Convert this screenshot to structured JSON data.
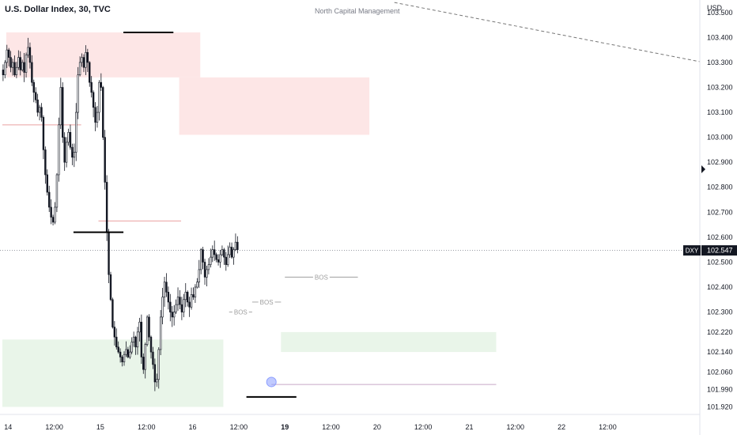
{
  "header": {
    "symbol_title": "U.S. Dollar Index, 30, TVC",
    "watermark": "North Capital Management",
    "currency_unit": "USD"
  },
  "colors": {
    "supply_zone": "#fde6e6",
    "demand_zone": "#e9f5e9",
    "candle": "#131722",
    "level_line_red": "#e9a0a0",
    "level_line_purple": "#c8a6c8",
    "marker": "#8c9eff",
    "bos": "#9e9e9e",
    "trendline": "#777777",
    "price_line": "#787b86",
    "price_tag": "#131722"
  },
  "chart_data": {
    "type": "candlestick",
    "symbol": "DXY",
    "interval": "30",
    "source": "TVC",
    "last_price": "102.547",
    "ylim": [
      101.89,
      103.55
    ],
    "y_ticks": [
      "103.500",
      "103.400",
      "103.300",
      "103.200",
      "103.100",
      "103.000",
      "102.900",
      "102.800",
      "102.700",
      "102.600",
      "102.500",
      "102.400",
      "102.300",
      "102.220",
      "102.140",
      "102.060",
      "101.990",
      "101.920"
    ],
    "x_ticks": [
      {
        "label": "14",
        "bar": 3
      },
      {
        "label": "12:00",
        "bar": 27
      },
      {
        "label": "15",
        "bar": 51
      },
      {
        "label": "12:00",
        "bar": 75
      },
      {
        "label": "16",
        "bar": 99
      },
      {
        "label": "12:00",
        "bar": 123
      },
      {
        "label": "19",
        "bar": 147,
        "bold": true
      },
      {
        "label": "12:00",
        "bar": 171
      },
      {
        "label": "20",
        "bar": 195
      },
      {
        "label": "12:00",
        "bar": 219
      },
      {
        "label": "21",
        "bar": 243
      },
      {
        "label": "12:00",
        "bar": 267
      },
      {
        "label": "22",
        "bar": 291
      },
      {
        "label": "12:00",
        "bar": 315
      }
    ],
    "close_path": [
      103.25,
      103.3,
      103.35,
      103.32,
      103.28,
      103.3,
      103.25,
      103.28,
      103.32,
      103.27,
      103.3,
      103.26,
      103.33,
      103.36,
      103.3,
      103.22,
      103.18,
      103.15,
      103.1,
      103.12,
      103.08,
      102.95,
      102.85,
      102.78,
      102.72,
      102.68,
      102.66,
      102.72,
      102.85,
      103.05,
      103.2,
      103.0,
      102.9,
      102.98,
      103.02,
      102.96,
      102.92,
      102.94,
      103.1,
      103.25,
      103.3,
      103.32,
      103.28,
      103.34,
      103.3,
      103.22,
      103.18,
      103.12,
      103.06,
      103.1,
      103.22,
      103.2,
      103.0,
      102.82,
      102.62,
      102.45,
      102.35,
      102.24,
      102.2,
      102.16,
      102.14,
      102.12,
      102.1,
      102.13,
      102.15,
      102.12,
      102.14,
      102.18,
      102.2,
      102.16,
      102.22,
      102.26,
      102.12,
      102.07,
      102.17,
      102.28,
      102.2,
      102.14,
      102.09,
      102.02,
      102.03,
      102.15,
      102.28,
      102.36,
      102.42,
      102.38,
      102.34,
      102.3,
      102.28,
      102.3,
      102.33,
      102.36,
      102.33,
      102.3,
      102.35,
      102.38,
      102.34,
      102.32,
      102.37,
      102.36,
      102.4,
      102.42,
      102.47,
      102.55,
      102.5,
      102.44,
      102.47,
      102.49,
      102.52,
      102.55,
      102.53,
      102.51,
      102.5,
      102.53,
      102.55,
      102.52,
      102.49,
      102.53,
      102.56,
      102.52,
      102.55,
      102.58,
      102.55
    ],
    "zones": [
      {
        "type": "supply",
        "bar_start": 2,
        "bar_end": 103,
        "top": 103.42,
        "bottom": 103.24
      },
      {
        "type": "supply",
        "bar_start": 92,
        "bar_end": 191,
        "top": 103.24,
        "bottom": 103.01
      },
      {
        "type": "demand",
        "bar_start": 0,
        "bar_end": 115,
        "top": 102.19,
        "bottom": 101.92
      },
      {
        "type": "demand",
        "bar_start": 145,
        "bar_end": 257,
        "top": 102.22,
        "bottom": 102.14
      }
    ],
    "level_lines": [
      {
        "price": 103.05,
        "bar_start": 0,
        "bar_end": 41,
        "color": "red"
      },
      {
        "price": 102.665,
        "bar_start": 50,
        "bar_end": 93,
        "color": "red"
      },
      {
        "price": 102.01,
        "bar_start": 140,
        "bar_end": 257,
        "color": "purple"
      }
    ],
    "liquidity_lines": [
      {
        "price": 103.42,
        "bar_start": 63,
        "bar_end": 89
      },
      {
        "price": 102.62,
        "bar_start": 37,
        "bar_end": 63
      },
      {
        "price": 101.96,
        "bar_start": 127,
        "bar_end": 153
      }
    ],
    "bos": [
      {
        "label": "BOS",
        "price": 102.3,
        "bar_start": 118,
        "bar_end": 130
      },
      {
        "label": "BOS",
        "price": 102.34,
        "bar_start": 130,
        "bar_end": 145
      },
      {
        "label": "BOS",
        "price": 102.44,
        "bar_start": 147,
        "bar_end": 185
      }
    ],
    "marker": {
      "bar": 140,
      "price": 102.02
    },
    "trendline": {
      "bar_start": 204,
      "price_start": 103.54,
      "bar_end": 365,
      "price_end": 103.3
    }
  }
}
